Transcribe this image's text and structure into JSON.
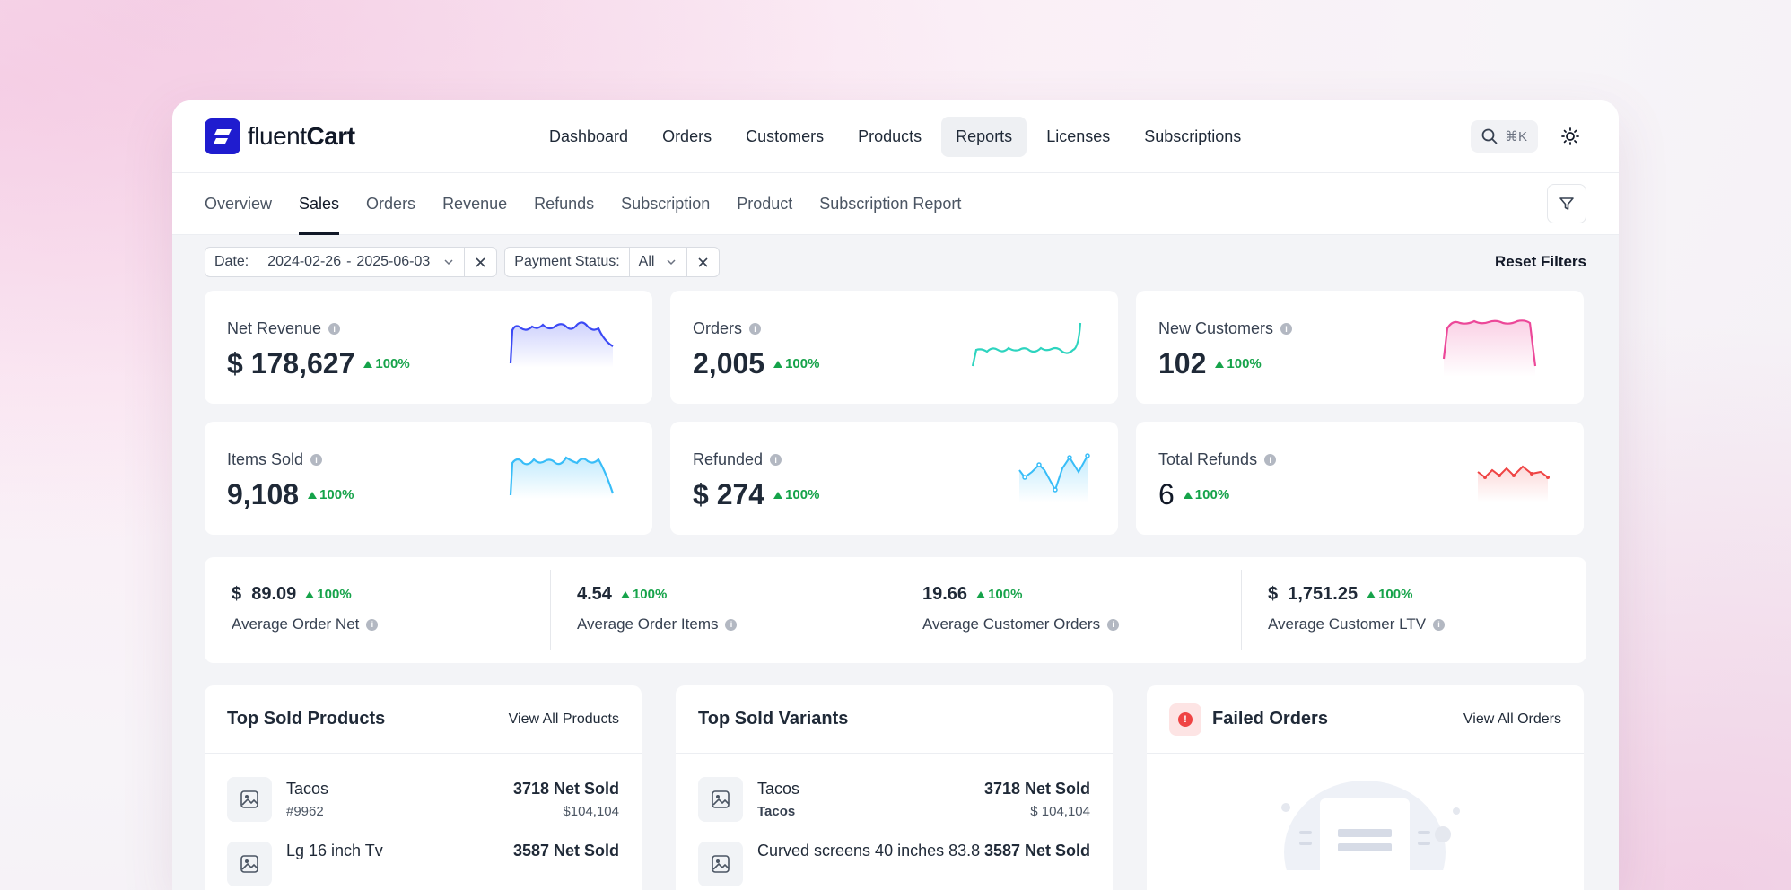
{
  "brand": {
    "name_light": "fluent",
    "name_bold": "Cart"
  },
  "menu": [
    {
      "label": "Dashboard",
      "active": false
    },
    {
      "label": "Orders",
      "active": false
    },
    {
      "label": "Customers",
      "active": false
    },
    {
      "label": "Products",
      "active": false
    },
    {
      "label": "Reports",
      "active": true
    },
    {
      "label": "Licenses",
      "active": false
    },
    {
      "label": "Subscriptions",
      "active": false
    }
  ],
  "search": {
    "shortcut": "⌘K"
  },
  "subtabs": [
    {
      "label": "Overview"
    },
    {
      "label": "Sales"
    },
    {
      "label": "Orders"
    },
    {
      "label": "Revenue"
    },
    {
      "label": "Refunds"
    },
    {
      "label": "Subscription"
    },
    {
      "label": "Product"
    },
    {
      "label": "Subscription Report"
    }
  ],
  "filters": {
    "date_label": "Date:",
    "date_from": "2024-02-26",
    "date_sep": "-",
    "date_to": "2025-06-03",
    "payment_label": "Payment Status:",
    "payment_value": "All",
    "reset_label": "Reset Filters"
  },
  "stats": [
    {
      "label": "Net Revenue",
      "value": "$ 178,627",
      "delta": "100%",
      "color": "#3b49f5"
    },
    {
      "label": "Orders",
      "value": "2,005",
      "delta": "100%",
      "color": "#2dd4bf"
    },
    {
      "label": "New Customers",
      "value": "102",
      "delta": "100%",
      "color": "#ec4899"
    },
    {
      "label": "Items Sold",
      "value": "9,108",
      "delta": "100%",
      "color": "#38bdf8"
    },
    {
      "label": "Refunded",
      "value": "$ 274",
      "delta": "100%",
      "color": "#38bdf8"
    },
    {
      "label": "Total Refunds",
      "value": "6",
      "delta": "100%",
      "color": "#ef4444"
    }
  ],
  "averages": [
    {
      "value": "$  89.09",
      "delta": "100%",
      "label": "Average Order Net"
    },
    {
      "value": "4.54",
      "delta": "100%",
      "label": "Average Order Items"
    },
    {
      "value": "19.66",
      "delta": "100%",
      "label": "Average Customer Orders"
    },
    {
      "value": "$  1,751.25",
      "delta": "100%",
      "label": "Average Customer LTV"
    }
  ],
  "top_products": {
    "title": "Top Sold Products",
    "link": "View All Products",
    "items": [
      {
        "name": "Tacos",
        "sub": "#9962",
        "sold": "3718 Net Sold",
        "amount": "$104,104"
      },
      {
        "name": "Lg 16 inch Tv",
        "sub": "",
        "sold": "3587 Net Sold",
        "amount": ""
      }
    ]
  },
  "top_variants": {
    "title": "Top Sold Variants",
    "items": [
      {
        "name": "Tacos",
        "sub": "Tacos",
        "sold": "3718 Net Sold",
        "amount": "$ 104,104"
      },
      {
        "name": "Curved screens 40 inches 83.8",
        "sub": "",
        "sold": "3587 Net Sold",
        "amount": ""
      }
    ]
  },
  "failed_orders": {
    "title": "Failed Orders",
    "link": "View All Orders"
  }
}
